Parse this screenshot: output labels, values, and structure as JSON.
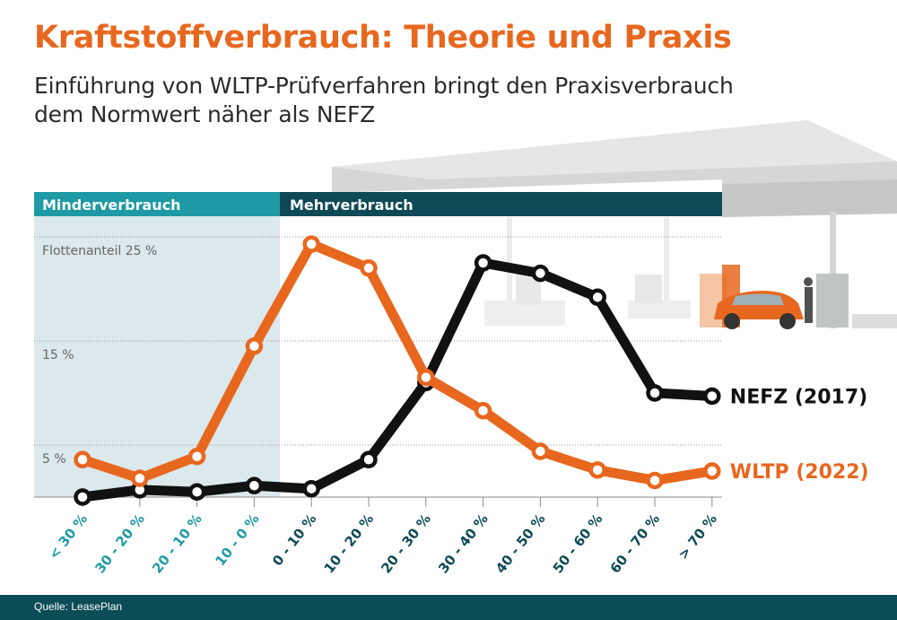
{
  "header": {
    "title": "Kraftstoffverbrauch: Theorie und Praxis",
    "subtitle_line1": "Einführung von WLTP-Prüfverfahren bringt den Praxisverbrauch",
    "subtitle_line2": "dem Normwert näher als NEFZ"
  },
  "bands": {
    "left": "Minderverbrauch",
    "right": "Mehrverbrauch"
  },
  "footer": {
    "source": "Quelle: LeasePlan"
  },
  "colors": {
    "accent_orange": "#e8671e",
    "teal_light": "#1e9aa4",
    "teal_dark": "#0d4a55",
    "nefz_black": "#111111",
    "shade": "#dbe8ec"
  },
  "chart_data": {
    "type": "line",
    "categories": [
      "< 30 %",
      "30 - 20 %",
      "20 - 10 %",
      "10 - 0 %",
      "0 - 10 %",
      "10 - 20 %",
      "20 - 30 %",
      "30 - 40 %",
      "40 - 50 %",
      "50 - 60 %",
      "60 - 70 %",
      "> 70 %"
    ],
    "y_labels": [
      {
        "value": 25,
        "text": "Flottenanteil 25 %"
      },
      {
        "value": 15,
        "text": "15 %"
      },
      {
        "value": 5,
        "text": "5 %"
      }
    ],
    "ylim": [
      0,
      27
    ],
    "grid": true,
    "shaded_categories": [
      0,
      3
    ],
    "series": [
      {
        "name": "NEFZ (2017)",
        "color": "#111111",
        "values": [
          0.0,
          0.7,
          0.5,
          1.1,
          0.8,
          3.6,
          11.0,
          22.5,
          21.5,
          19.2,
          10.0,
          9.7
        ]
      },
      {
        "name": "WLTP (2022)",
        "color": "#e8671e",
        "values": [
          3.6,
          1.8,
          3.9,
          14.5,
          24.3,
          22.0,
          11.5,
          8.3,
          4.4,
          2.6,
          1.6,
          2.5
        ]
      }
    ]
  }
}
